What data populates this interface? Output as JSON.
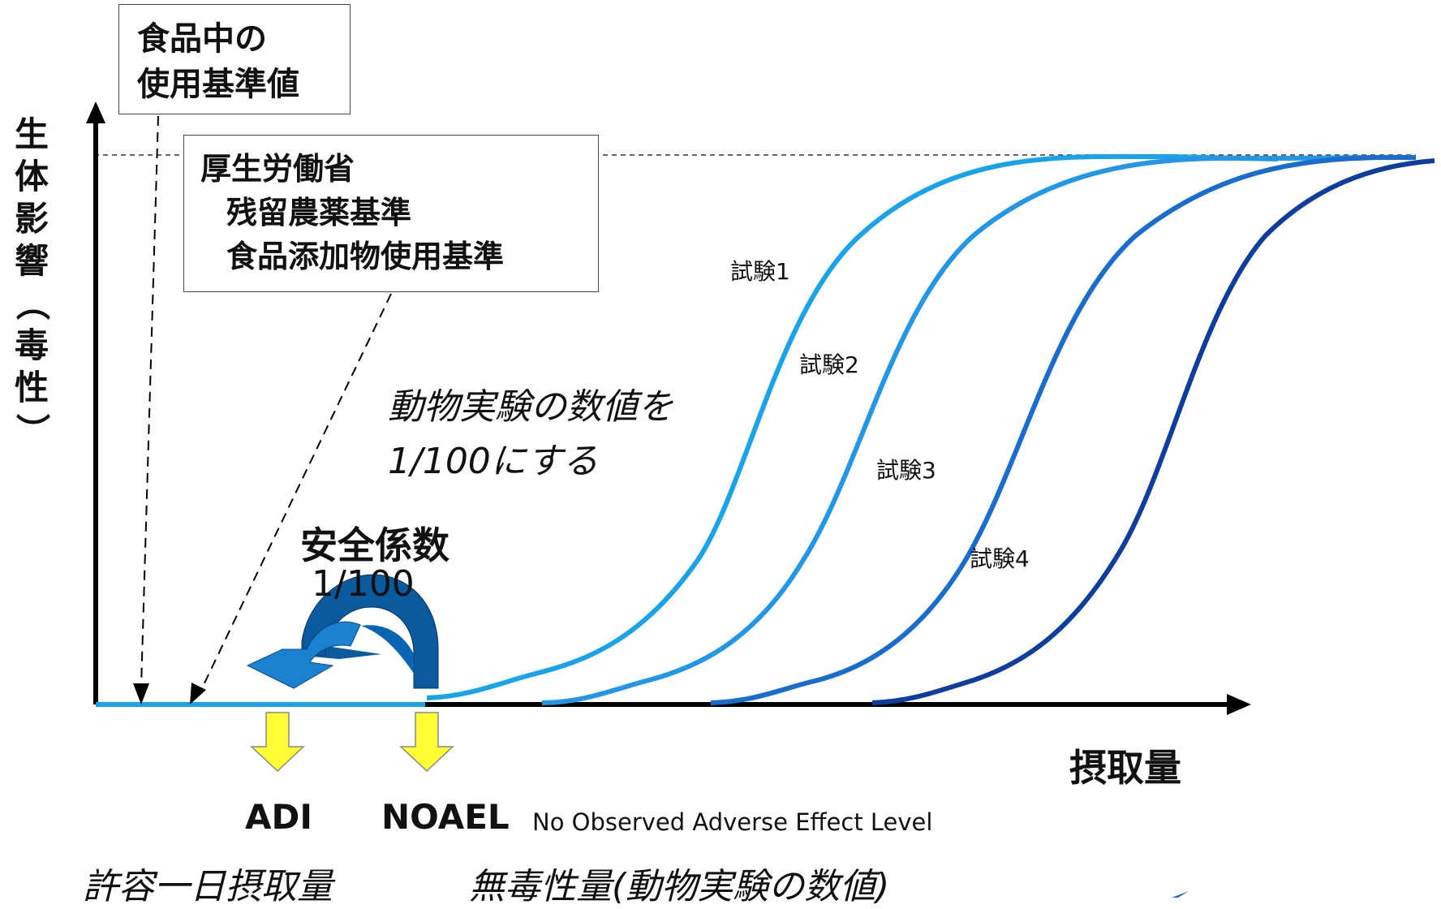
{
  "top_box": {
    "lines": [
      "食品中の",
      "使用基準値"
    ]
  },
  "mhlw_box": {
    "title": "厚生労働省",
    "lines": [
      "残留農薬基準",
      "食品添加物使用基準"
    ]
  },
  "y_axis_label_chars": [
    "生",
    "体",
    "影",
    "響",
    "（",
    "毒",
    "性",
    "）"
  ],
  "x_axis_label": "摂取量",
  "test_labels": [
    "試験1",
    "試験2",
    "試験3",
    "試験4"
  ],
  "note": {
    "line1": "動物実験の数値を",
    "line2": "1/100にする"
  },
  "safety_factor": {
    "title": "安全係数",
    "value": "1/100"
  },
  "adi": {
    "label": "ADI",
    "desc": "許容一日摂取量"
  },
  "noael": {
    "label": "NOAEL",
    "full": "No Observed Adverse Effect Level",
    "desc": "無毒性量(動物実験の数値)"
  },
  "colors": {
    "curve1": "#1aa3e8",
    "curve2": "#1f8fe0",
    "curve3": "#1a6dcc",
    "curve4": "#0e3d9e",
    "baseline": "#1aa3e8",
    "arrow_blue": "#0a64b4",
    "arrow_yellow": "#ffff33",
    "axis": "#000000"
  }
}
